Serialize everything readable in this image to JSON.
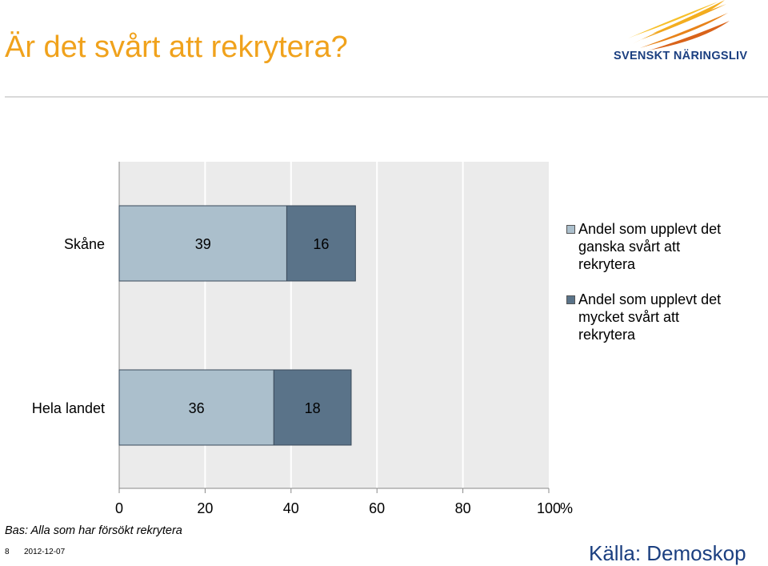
{
  "header": {
    "title": "Är det svårt att rekrytera?",
    "logo_text": "SVENSKT NÄRINGSLIV"
  },
  "colors": {
    "title": "#F0A21C",
    "brand_blue": "#1B3F80",
    "series_light": "#ABBFCC",
    "series_dark": "#5A7389",
    "plot_background": "#EBEBEB",
    "gridline": "#ffffff"
  },
  "chart_data": {
    "type": "bar",
    "orientation": "horizontal",
    "stacked": true,
    "categories": [
      "Skåne",
      "Hela landet"
    ],
    "series": [
      {
        "name": "Andel som upplevt det ganska svårt att rekrytera",
        "values": [
          39,
          36
        ]
      },
      {
        "name": "Andel som upplevt det mycket svårt att rekrytera",
        "values": [
          16,
          18
        ]
      }
    ],
    "xlim": [
      0,
      100
    ],
    "xticks": [
      "0",
      "20",
      "40",
      "60",
      "80",
      "100"
    ],
    "x_unit": "%",
    "grid": true,
    "legend_position": "right"
  },
  "footer": {
    "note": "Bas: Alla som har försökt rekrytera",
    "page_number": "8",
    "date": "2012-12-07",
    "source": "Källa: Demoskop"
  }
}
